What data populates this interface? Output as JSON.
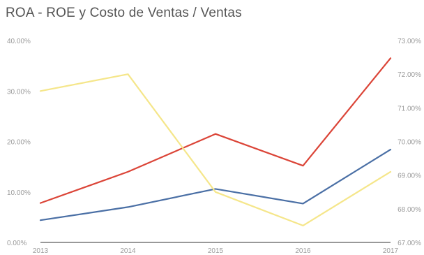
{
  "chart_data": {
    "type": "line",
    "title": "ROA - ROE y Costo de Ventas / Ventas",
    "categories": [
      "2013",
      "2014",
      "2015",
      "2016",
      "2017"
    ],
    "y_left": {
      "ticks": [
        "0.00%",
        "10.00%",
        "20.00%",
        "30.00%",
        "40.00%"
      ],
      "range": [
        0,
        40
      ]
    },
    "y_right": {
      "ticks": [
        "67.00%",
        "68.00%",
        "69.00%",
        "70.00%",
        "71.00%",
        "72.00%",
        "73.00%"
      ],
      "range": [
        67,
        73
      ]
    },
    "grid": false,
    "legend": "none",
    "series": [
      {
        "axis": "left",
        "color": "#db4437",
        "values": [
          7.8,
          14.0,
          21.5,
          15.2,
          36.5
        ]
      },
      {
        "axis": "left",
        "color": "#4a6fa5",
        "values": [
          4.4,
          7.0,
          10.6,
          7.7,
          18.4
        ]
      },
      {
        "axis": "right",
        "color": "#f5e68a",
        "values": [
          71.5,
          72.0,
          68.5,
          67.5,
          69.1
        ]
      }
    ]
  }
}
